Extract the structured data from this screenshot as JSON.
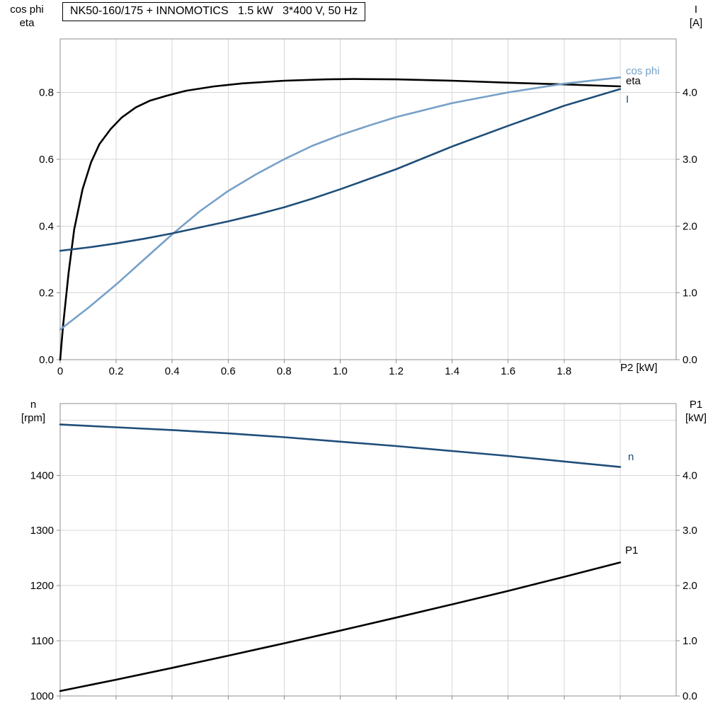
{
  "colors": {
    "black": "#000000",
    "light_blue": "#76a0c8",
    "dark_blue": "#1f4e79",
    "grid": "#d7d7d7",
    "frame": "#8f8f8f"
  },
  "chart_data": [
    {
      "type": "line",
      "title": "NK50-160/175 + INNOMOTICS   1.5 kW   3*400 V, 50 Hz",
      "xlabel": "P2 [kW]",
      "ylabel_left": "cos phi\neta",
      "ylabel_right": "I\n[A]",
      "grid": true,
      "legend_position": "end-of-curve",
      "xlim": [
        0,
        2.2
      ],
      "ylim_left": [
        0,
        0.96
      ],
      "ylim_right": [
        0,
        4.8
      ],
      "x_ticks": [
        0,
        0.2,
        0.4,
        0.6,
        0.8,
        1.0,
        1.2,
        1.4,
        1.6,
        1.8,
        2.0
      ],
      "x_tick_labels": [
        "0",
        "0.2",
        "0.4",
        "0.6",
        "0.8",
        "1.0",
        "1.2",
        "1.4",
        "1.6",
        "1.8",
        ""
      ],
      "y_ticks_left": [
        0,
        0.2,
        0.4,
        0.6,
        0.8
      ],
      "y_tick_labels_left": [
        "0.0",
        "0.2",
        "0.4",
        "0.6",
        "0.8"
      ],
      "y_grid_extra_left": [],
      "y_ticks_right": [
        0,
        1,
        2,
        3,
        4
      ],
      "y_tick_labels_right": [
        "0.0",
        "1.0",
        "2.0",
        "3.0",
        "4.0"
      ],
      "series": [
        {
          "name": "eta",
          "label": "eta",
          "axis": "left",
          "color": "#000000",
          "x": [
            0,
            0.01,
            0.03,
            0.05,
            0.08,
            0.11,
            0.14,
            0.18,
            0.22,
            0.27,
            0.32,
            0.38,
            0.45,
            0.55,
            0.65,
            0.8,
            0.95,
            1.05,
            1.2,
            1.4,
            1.6,
            1.8,
            2.0
          ],
          "y": [
            0,
            0.1,
            0.26,
            0.39,
            0.51,
            0.59,
            0.645,
            0.69,
            0.725,
            0.755,
            0.775,
            0.79,
            0.805,
            0.818,
            0.827,
            0.835,
            0.839,
            0.84,
            0.839,
            0.835,
            0.829,
            0.824,
            0.818
          ]
        },
        {
          "name": "cos phi",
          "label": "cos phi",
          "axis": "left",
          "color": "#76a0c8",
          "x": [
            0,
            0.1,
            0.2,
            0.3,
            0.4,
            0.5,
            0.6,
            0.7,
            0.8,
            0.9,
            1.0,
            1.1,
            1.2,
            1.4,
            1.6,
            1.8,
            2.0
          ],
          "y": [
            0.09,
            0.155,
            0.225,
            0.3,
            0.375,
            0.445,
            0.505,
            0.555,
            0.6,
            0.64,
            0.672,
            0.7,
            0.726,
            0.768,
            0.8,
            0.826,
            0.845
          ]
        },
        {
          "name": "I",
          "label": "I",
          "axis": "right",
          "color": "#1f4e79",
          "x": [
            0,
            0.1,
            0.2,
            0.3,
            0.4,
            0.5,
            0.6,
            0.7,
            0.8,
            0.9,
            1.0,
            1.2,
            1.4,
            1.6,
            1.8,
            2.0
          ],
          "y": [
            1.63,
            1.68,
            1.74,
            1.81,
            1.89,
            1.98,
            2.07,
            2.17,
            2.28,
            2.41,
            2.55,
            2.85,
            3.19,
            3.5,
            3.8,
            4.05
          ]
        }
      ]
    },
    {
      "type": "line",
      "title": "",
      "xlabel": "",
      "ylabel_left": "n\n[rpm]",
      "ylabel_right": "P1\n[kW]",
      "grid": true,
      "legend_position": "end-of-curve",
      "xlim": [
        0,
        2.2
      ],
      "ylim_left": [
        1000,
        1530
      ],
      "ylim_right": [
        0,
        5.3
      ],
      "x_ticks": [
        0,
        0.2,
        0.4,
        0.6,
        0.8,
        1.0,
        1.2,
        1.4,
        1.6,
        1.8,
        2.0
      ],
      "x_tick_labels": [
        "",
        "",
        "",
        "",
        "",
        "",
        "",
        "",
        "",
        "",
        ""
      ],
      "y_ticks_left": [
        1000,
        1100,
        1200,
        1300,
        1400
      ],
      "y_tick_labels_left": [
        "1000",
        "1100",
        "1200",
        "1300",
        "1400"
      ],
      "y_grid_extra_left": [
        1500
      ],
      "y_ticks_right": [
        0,
        1,
        2,
        3,
        4
      ],
      "y_tick_labels_right": [
        "0.0",
        "1.0",
        "2.0",
        "3.0",
        "4.0"
      ],
      "series": [
        {
          "name": "n",
          "label": "n",
          "axis": "left",
          "color": "#1f4e79",
          "x": [
            0,
            0.2,
            0.4,
            0.6,
            0.8,
            1.0,
            1.2,
            1.4,
            1.6,
            1.8,
            2.0
          ],
          "y": [
            1492,
            1487,
            1482,
            1476,
            1469,
            1461,
            1453,
            1444,
            1435,
            1425,
            1415
          ]
        },
        {
          "name": "P1",
          "label": "P1",
          "axis": "right",
          "color": "#000000",
          "x": [
            0,
            0.2,
            0.4,
            0.6,
            0.8,
            1.0,
            1.2,
            1.4,
            1.6,
            1.8,
            2.0
          ],
          "y": [
            0.09,
            0.295,
            0.51,
            0.73,
            0.955,
            1.185,
            1.42,
            1.66,
            1.905,
            2.16,
            2.42
          ]
        }
      ]
    }
  ]
}
